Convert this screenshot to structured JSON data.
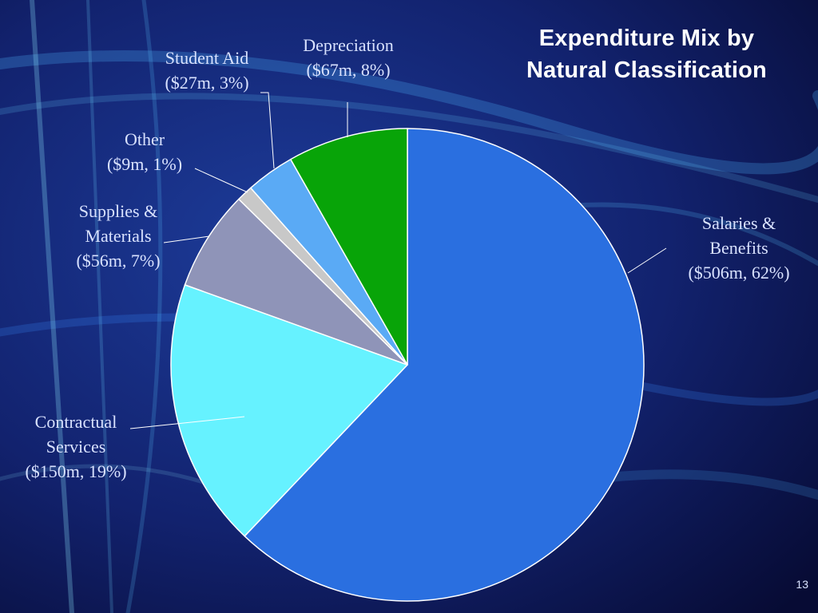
{
  "slide": {
    "title_line1": "Expenditure Mix by",
    "title_line2": "Natural Classification",
    "page_number": "13"
  },
  "chart_data": {
    "type": "pie",
    "title": "Expenditure Mix by Natural Classification",
    "unit": "$m",
    "slices": [
      {
        "name_lines": [
          "Salaries &",
          "Benefits"
        ],
        "value_label": "($506m, 62%)",
        "value": 506,
        "percent": 62,
        "color": "#2a6fe0"
      },
      {
        "name_lines": [
          "Contractual",
          "Services"
        ],
        "value_label": "($150m, 19%)",
        "value": 150,
        "percent": 19,
        "color": "#66f2ff"
      },
      {
        "name_lines": [
          "Supplies &",
          "Materials"
        ],
        "value_label": "($56m, 7%)",
        "value": 56,
        "percent": 7,
        "color": "#8f94b8"
      },
      {
        "name_lines": [
          "Other"
        ],
        "value_label": "($9m, 1%)",
        "value": 9,
        "percent": 1,
        "color": "#c8c8c8"
      },
      {
        "name_lines": [
          "Student Aid"
        ],
        "value_label": "($27m, 3%)",
        "value": 27,
        "percent": 3,
        "color": "#5aaaf5"
      },
      {
        "name_lines": [
          "Depreciation"
        ],
        "value_label": "($67m, 8%)",
        "value": 67,
        "percent": 8,
        "color": "#08a408"
      }
    ]
  }
}
